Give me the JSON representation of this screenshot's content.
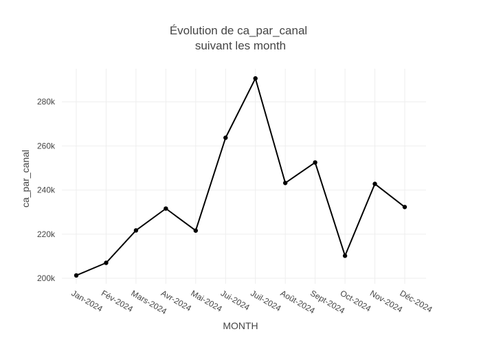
{
  "chart_data": {
    "type": "line",
    "title_line1": "Évolution de ca_par_canal",
    "title_line2": "suivant les month",
    "xlabel": "MONTH",
    "ylabel": "ca_par_canal",
    "categories": [
      "Jan-2024",
      "Fév-2024",
      "Mars-2024",
      "Avr-2024",
      "Mai-2024",
      "Jui-2024",
      "Juil-2024",
      "Août-2024",
      "Sept-2024",
      "Oct-2024",
      "Nov-2024",
      "Déc-2024"
    ],
    "series": [
      {
        "values": [
          201300,
          207000,
          221700,
          231600,
          221600,
          263700,
          290600,
          243200,
          252500,
          210200,
          242800,
          232300
        ]
      }
    ],
    "y_ticks": [
      200000,
      220000,
      240000,
      260000,
      280000
    ],
    "y_tick_labels": [
      "200k",
      "220k",
      "240k",
      "260k",
      "280k"
    ],
    "ylim": [
      197500,
      295000
    ],
    "grid": true,
    "legend": "none",
    "line_color": "#000000"
  }
}
